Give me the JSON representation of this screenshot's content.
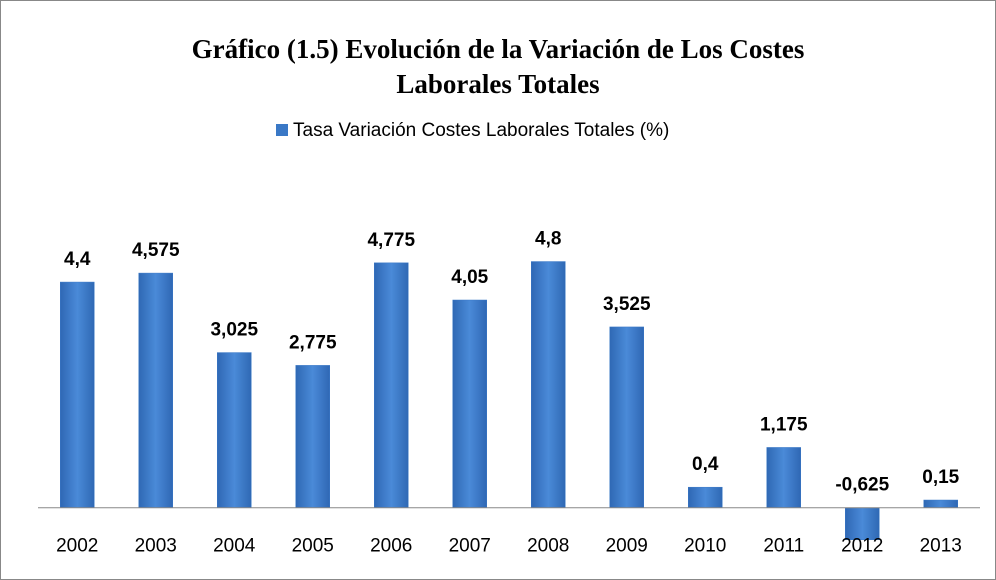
{
  "chart_data": {
    "type": "bar",
    "title": "Gráfico (1.5) Evolución de la Variación de Los Costes Laborales Totales",
    "categories": [
      "2002",
      "2003",
      "2004",
      "2005",
      "2006",
      "2007",
      "2008",
      "2009",
      "2010",
      "2011",
      "2012",
      "2013"
    ],
    "series": [
      {
        "name": "Tasa Variación Costes Laborales Totales (%)",
        "color": "#3a78c6",
        "values": [
          4.4,
          4.575,
          3.025,
          2.775,
          4.775,
          4.05,
          4.8,
          3.525,
          0.4,
          1.175,
          -0.625,
          0.15
        ],
        "value_labels": [
          "4,4",
          "4,575",
          "3,025",
          "2,775",
          "4,775",
          "4,05",
          "4,8",
          "3,525",
          "0,4",
          "1,175",
          "-0,625",
          "0,15"
        ]
      }
    ],
    "ylim": [
      -1,
      6
    ]
  }
}
